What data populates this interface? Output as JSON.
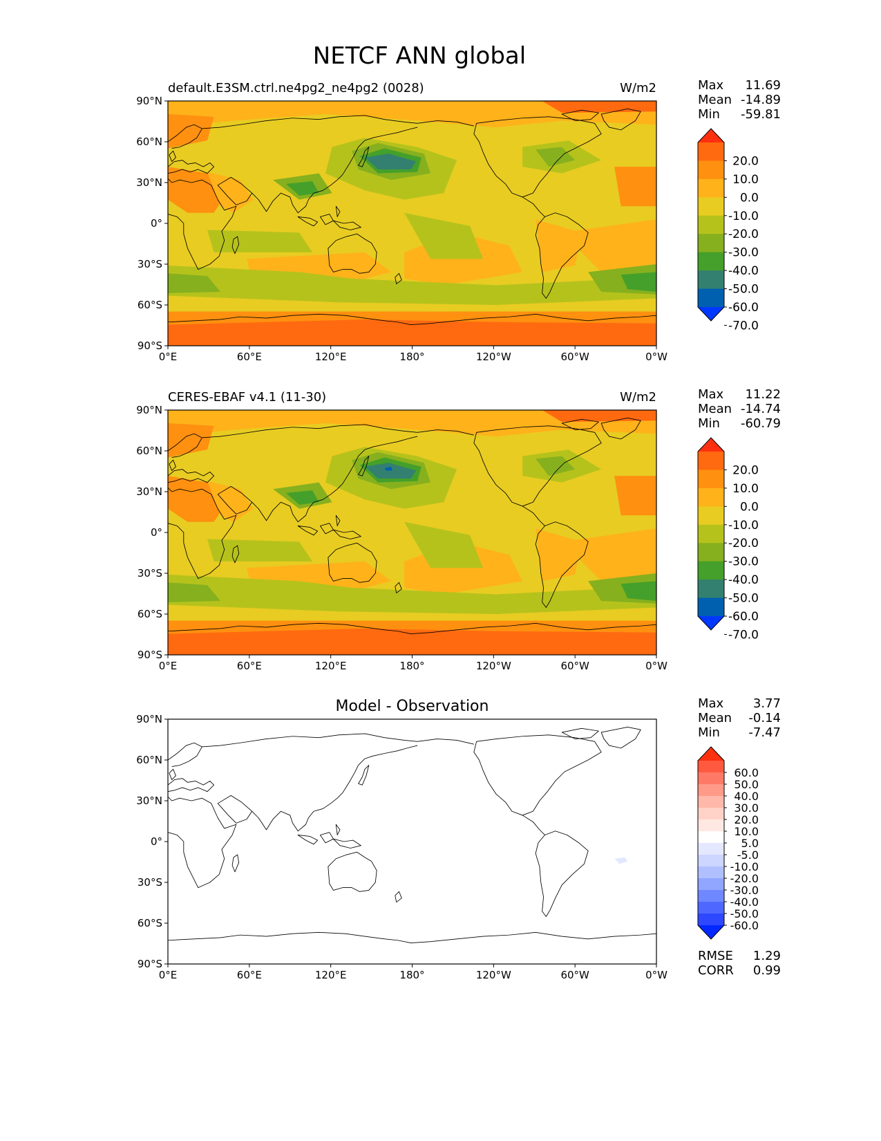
{
  "figure": {
    "title": "NETCF ANN global"
  },
  "axes": {
    "lat_ticks": [
      "90°N",
      "60°N",
      "30°N",
      "0°",
      "30°S",
      "60°S",
      "90°S"
    ],
    "lon_ticks": [
      "0°E",
      "60°E",
      "120°E",
      "180°",
      "120°W",
      "60°W",
      "0°W"
    ]
  },
  "panels": [
    {
      "id": "model",
      "left_title": "default.E3SM.ctrl.ne4pg2_ne4pg2 (0028)",
      "center_title": "",
      "units": "W/m2",
      "stats": [
        {
          "label": "Max",
          "value": "11.69"
        },
        {
          "label": "Mean",
          "value": "-14.89"
        },
        {
          "label": "Min",
          "value": "-59.81"
        }
      ],
      "colorbar": {
        "labels": [
          "20.0",
          "10.0",
          "0.0",
          "-10.0",
          "-20.0",
          "-30.0",
          "-40.0",
          "-50.0",
          "-60.0",
          "-70.0"
        ],
        "colors": [
          "#ff3010",
          "#ff6a10",
          "#ff9010",
          "#ffb21a",
          "#e8cc22",
          "#b6c21c",
          "#86b01e",
          "#44a02a",
          "#338070",
          "#0060b0",
          "#0038ff"
        ]
      }
    },
    {
      "id": "obs",
      "left_title": "CERES-EBAF v4.1 (11-30)",
      "center_title": "",
      "units": "W/m2",
      "stats": [
        {
          "label": "Max",
          "value": "11.22"
        },
        {
          "label": "Mean",
          "value": "-14.74"
        },
        {
          "label": "Min",
          "value": "-60.79"
        }
      ],
      "colorbar": {
        "labels": [
          "20.0",
          "10.0",
          "0.0",
          "-10.0",
          "-20.0",
          "-30.0",
          "-40.0",
          "-50.0",
          "-60.0",
          "-70.0"
        ],
        "colors": [
          "#ff3010",
          "#ff6a10",
          "#ff9010",
          "#ffb21a",
          "#e8cc22",
          "#b6c21c",
          "#86b01e",
          "#44a02a",
          "#338070",
          "#0060b0",
          "#0038ff"
        ]
      }
    },
    {
      "id": "diff",
      "left_title": "",
      "center_title": "Model - Observation",
      "units": "",
      "stats": [
        {
          "label": "Max",
          "value": "3.77"
        },
        {
          "label": "Mean",
          "value": "-0.14"
        },
        {
          "label": "Min",
          "value": "-7.47"
        }
      ],
      "extra_stats": [
        {
          "label": "RMSE",
          "value": "1.29"
        },
        {
          "label": "CORR",
          "value": "0.99"
        }
      ],
      "colorbar": {
        "labels": [
          "60.0",
          "50.0",
          "40.0",
          "30.0",
          "20.0",
          "10.0",
          "5.0",
          "-5.0",
          "-10.0",
          "-20.0",
          "-30.0",
          "-40.0",
          "-50.0",
          "-60.0"
        ],
        "colors": [
          "#ff3010",
          "#ff5a40",
          "#ff7a66",
          "#ff9a88",
          "#ffb8aa",
          "#ffd2c8",
          "#ffe8e2",
          "#ffffff",
          "#e4e8ff",
          "#ccd6ff",
          "#b0c0ff",
          "#90a6ff",
          "#7088ff",
          "#4e68ff",
          "#2e48ff",
          "#0028ff"
        ]
      }
    }
  ]
}
